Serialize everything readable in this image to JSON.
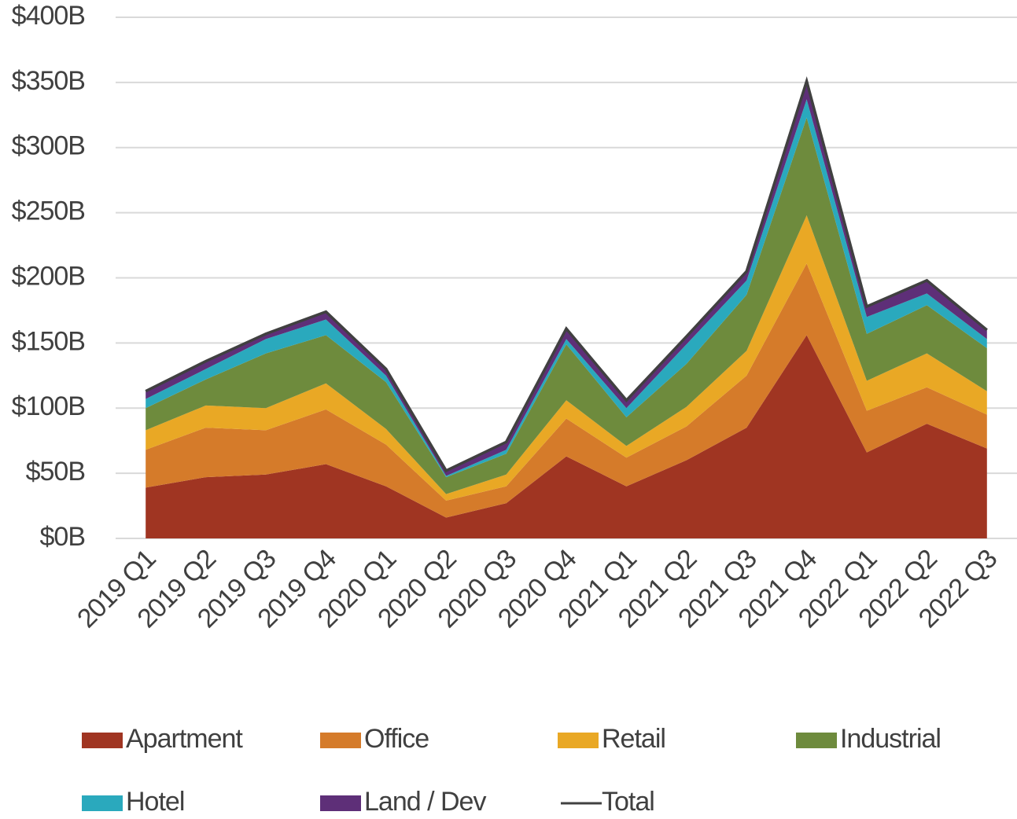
{
  "chart_data": {
    "type": "area",
    "stacked": true,
    "categories": [
      "2019 Q1",
      "2019 Q2",
      "2019 Q3",
      "2019 Q4",
      "2020 Q1",
      "2020 Q2",
      "2020 Q3",
      "2020 Q4",
      "2021 Q1",
      "2021 Q2",
      "2021 Q3",
      "2021 Q4",
      "2022 Q1",
      "2022 Q2",
      "2022 Q3"
    ],
    "series": [
      {
        "name": "Apartment",
        "color": "#a03522",
        "values": [
          39,
          47,
          49,
          57,
          40,
          16,
          27,
          63,
          40,
          60,
          85,
          156,
          66,
          88,
          69
        ]
      },
      {
        "name": "Office",
        "color": "#d57b2a",
        "values": [
          29,
          38,
          34,
          42,
          32,
          13,
          13,
          29,
          22,
          26,
          40,
          55,
          32,
          28,
          26
        ]
      },
      {
        "name": "Retail",
        "color": "#e9a825",
        "values": [
          15,
          17,
          17,
          20,
          12,
          5,
          9,
          14,
          9,
          15,
          19,
          37,
          23,
          26,
          18
        ]
      },
      {
        "name": "Industrial",
        "color": "#6e8b3d",
        "values": [
          17,
          20,
          42,
          37,
          36,
          13,
          16,
          43,
          22,
          33,
          43,
          75,
          36,
          37,
          33
        ]
      },
      {
        "name": "Hotel",
        "color": "#2aa9bd",
        "values": [
          7,
          8,
          11,
          12,
          5,
          1,
          3,
          4,
          7,
          15,
          11,
          14,
          13,
          9,
          7
        ]
      },
      {
        "name": "Land / Dev",
        "color": "#5e2f78",
        "values": [
          6,
          6,
          4,
          6,
          5,
          4,
          6,
          8,
          6,
          6,
          7,
          14,
          8,
          10,
          7
        ]
      },
      {
        "name": "Total",
        "color": "#404040",
        "type": "line",
        "values": [
          113,
          136,
          157,
          174,
          130,
          52,
          74,
          161,
          106,
          155,
          205,
          351,
          178,
          198,
          160
        ]
      }
    ],
    "ylim": [
      0,
      400
    ],
    "yticks": [
      {
        "value": 0,
        "label": "$0B"
      },
      {
        "value": 50,
        "label": "$50B"
      },
      {
        "value": 100,
        "label": "$100B"
      },
      {
        "value": 150,
        "label": "$150B"
      },
      {
        "value": 200,
        "label": "$200B"
      },
      {
        "value": 250,
        "label": "$250B"
      },
      {
        "value": 300,
        "label": "$300B"
      },
      {
        "value": 350,
        "label": "$350B"
      },
      {
        "value": 400,
        "label": "$400B"
      }
    ],
    "grid": true,
    "legend": "bottom"
  }
}
